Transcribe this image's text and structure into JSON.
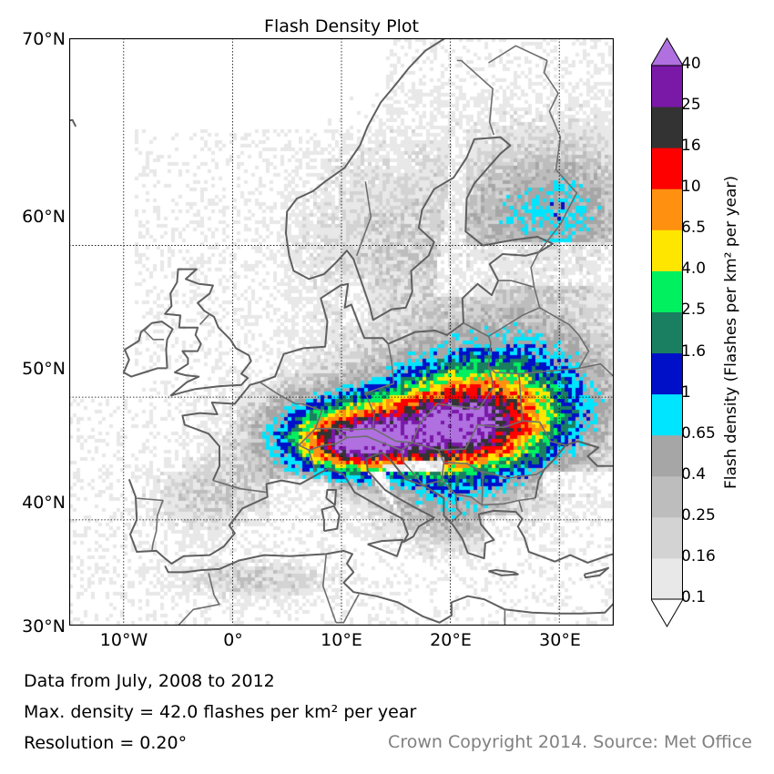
{
  "title": "Flash Density Plot",
  "latitude_labels": [
    "70°N",
    "60°N",
    "50°N",
    "40°N",
    "30°N"
  ],
  "longitude_labels": [
    "10°W",
    "0°",
    "10°E",
    "20°E",
    "30°E"
  ],
  "map_extent": {
    "lon_min": -15,
    "lon_max": 35,
    "lat_min": 30,
    "lat_max": 70
  },
  "gridlines": {
    "lon": [
      -10,
      0,
      10,
      20,
      30
    ],
    "lat": [
      40,
      50,
      60
    ]
  },
  "colorbar": {
    "title": "Flash density (Flashes per km² per year)",
    "levels": [
      "0.1",
      "0.16",
      "0.25",
      "0.4",
      "0.65",
      "1",
      "1.6",
      "2.5",
      "4.0",
      "6.5",
      "10",
      "16",
      "25",
      "40"
    ],
    "colors": [
      "#e8e8e8",
      "#d3d3d3",
      "#bdbdbd",
      "#a6a6a6",
      "#00e5ff",
      "#0010c8",
      "#1a7f60",
      "#00f060",
      "#ffe600",
      "#ff9010",
      "#ff0000",
      "#333333",
      "#7a18a8",
      "#b070e0"
    ],
    "extend": "both"
  },
  "footer": {
    "data_range": "Data from July, 2008 to 2012",
    "max_density": "Max. density = 42.0 flashes per km² per year",
    "resolution": "Resolution = 0.20°",
    "copyright": "Crown Copyright 2014. Source: Met Office"
  }
}
